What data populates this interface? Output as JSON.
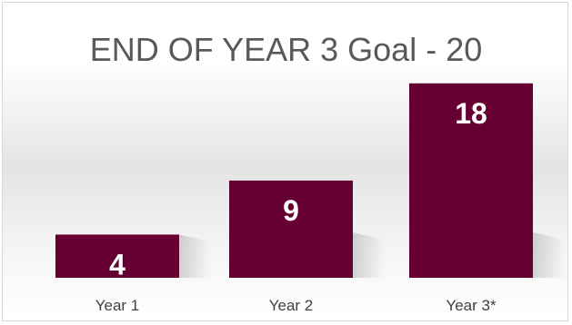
{
  "chart_data": {
    "type": "bar",
    "title": "END OF YEAR 3 Goal - 20",
    "categories": [
      "Year 1",
      "Year 2",
      "Year 3*"
    ],
    "values": [
      4,
      9,
      18
    ],
    "data_labels": [
      "4",
      "9",
      "18"
    ],
    "xlabel": "",
    "ylabel": "",
    "ylim": [
      0,
      20
    ],
    "grid": false,
    "legend": "none",
    "bar_color": "#660033"
  }
}
